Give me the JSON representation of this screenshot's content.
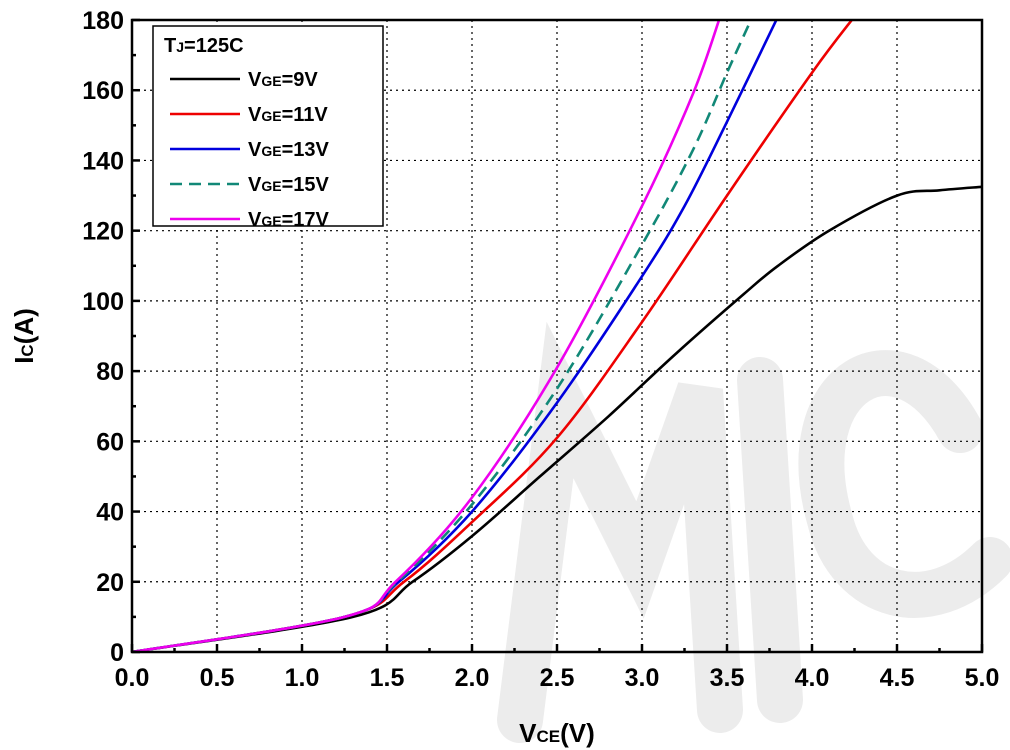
{
  "chart_data": {
    "type": "line",
    "xlabel": {
      "main": "V",
      "sub": "CE",
      "unit": "(V)"
    },
    "ylabel": {
      "main": "I",
      "sub": "C",
      "unit": "(A)"
    },
    "xlim": [
      0,
      5
    ],
    "ylim": [
      0,
      180
    ],
    "xticks": [
      "0.0",
      "0.5",
      "1.0",
      "1.5",
      "2.0",
      "2.5",
      "3.0",
      "3.5",
      "4.0",
      "4.5",
      "5.0"
    ],
    "yticks": [
      "0",
      "20",
      "40",
      "60",
      "80",
      "100",
      "120",
      "140",
      "160",
      "180"
    ],
    "grid": true,
    "legend_position": "top-left",
    "legend_title": {
      "main": "T",
      "sub": "J",
      "rest": "=125C"
    },
    "series": [
      {
        "name": "VGE=9V",
        "label_main": "V",
        "label_sub": "GE",
        "label_rest": "=9V",
        "color": "#000000",
        "dash": "solid",
        "x": [
          0,
          1.3,
          1.65,
          2.0,
          2.4,
          2.8,
          3.2,
          3.6,
          3.8,
          4.1,
          4.5,
          4.75,
          5.0
        ],
        "y": [
          0,
          10,
          20,
          33,
          50,
          67,
          85,
          102,
          110,
          120,
          130,
          131.5,
          132.5
        ]
      },
      {
        "name": "VGE=11V",
        "label_main": "V",
        "label_sub": "GE",
        "label_rest": "=11V",
        "color": "#ee0000",
        "dash": "solid",
        "x": [
          0,
          1.25,
          1.6,
          2.0,
          2.5,
          3.0,
          3.5,
          4.0,
          4.25
        ],
        "y": [
          0,
          10,
          20,
          37,
          61,
          94,
          130,
          165,
          181
        ]
      },
      {
        "name": "VGE=13V",
        "label_main": "V",
        "label_sub": "GE",
        "label_rest": "=13V",
        "color": "#0000dd",
        "dash": "solid",
        "x": [
          0,
          1.25,
          1.57,
          2.0,
          2.5,
          3.0,
          3.25,
          3.5,
          3.8
        ],
        "y": [
          0,
          10,
          20,
          40,
          71,
          107,
          127,
          151,
          181
        ]
      },
      {
        "name": "VGE=15V",
        "label_main": "V",
        "label_sub": "GE",
        "label_rest": "=15V",
        "color": "#118877",
        "dash": "dashed",
        "x": [
          0,
          1.25,
          1.56,
          2.0,
          2.5,
          3.0,
          3.3,
          3.5,
          3.65
        ],
        "y": [
          0,
          10,
          20,
          42,
          75,
          116,
          143,
          165,
          181
        ]
      },
      {
        "name": "VGE=17V",
        "label_main": "V",
        "label_sub": "GE",
        "label_rest": "=17V",
        "color": "#ee00ee",
        "dash": "solid",
        "x": [
          0,
          1.25,
          1.55,
          2.0,
          2.5,
          3.0,
          3.3,
          3.46
        ],
        "y": [
          0,
          10,
          20,
          44,
          81,
          127,
          159,
          181
        ]
      }
    ]
  }
}
